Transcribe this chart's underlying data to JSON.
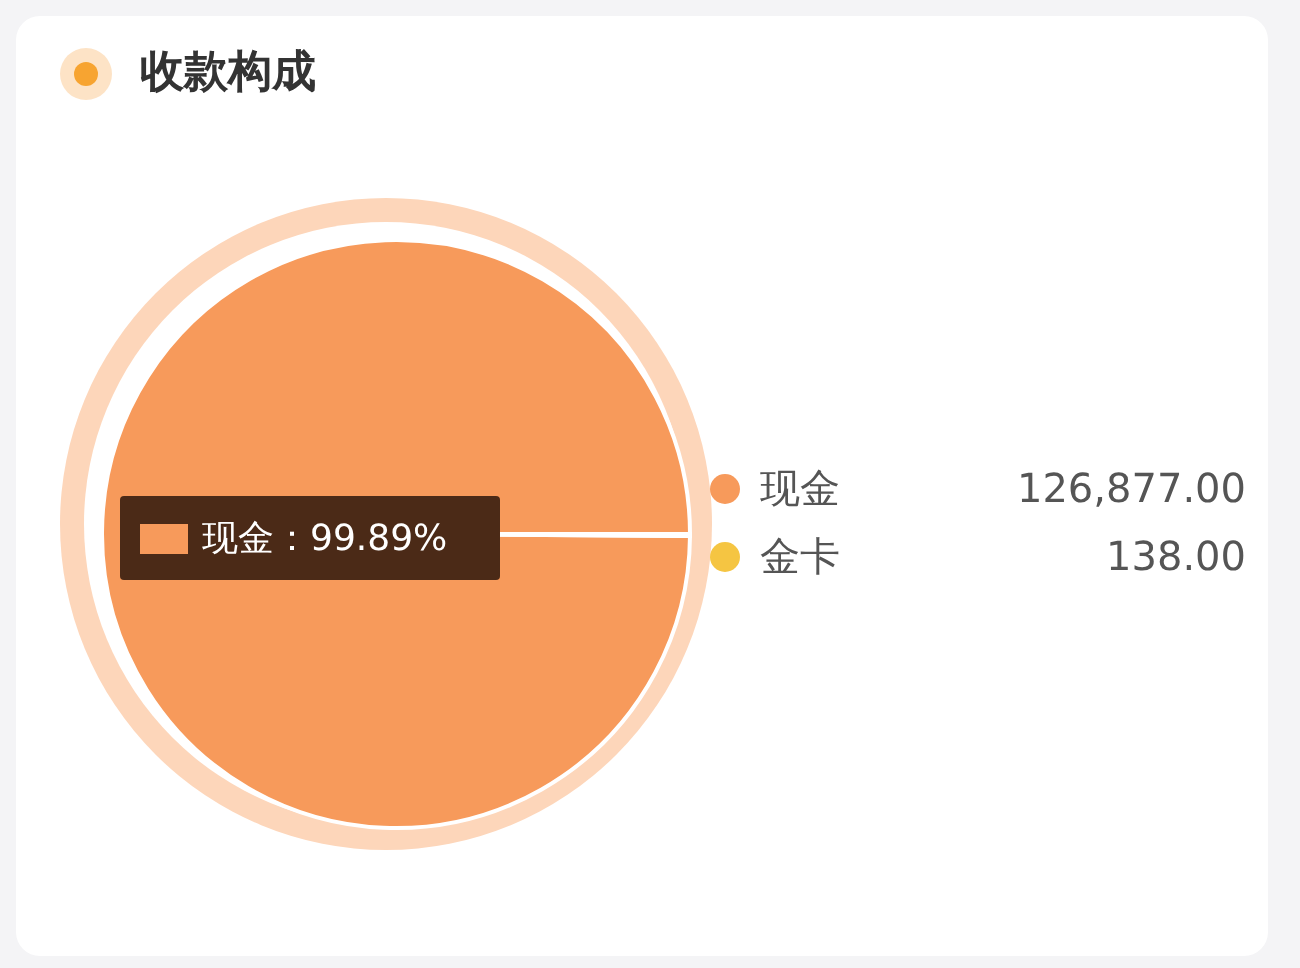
{
  "chart_data": {
    "type": "pie",
    "title": "收款构成",
    "categories": [
      "现金",
      "金卡"
    ],
    "values": [
      126877,
      138
    ],
    "value_labels": [
      "126,877.00",
      "138.00"
    ],
    "colors": [
      "#f79a5b",
      "#f5c542"
    ],
    "legend": "right",
    "annotations": [
      "现金：99.89%"
    ]
  }
}
